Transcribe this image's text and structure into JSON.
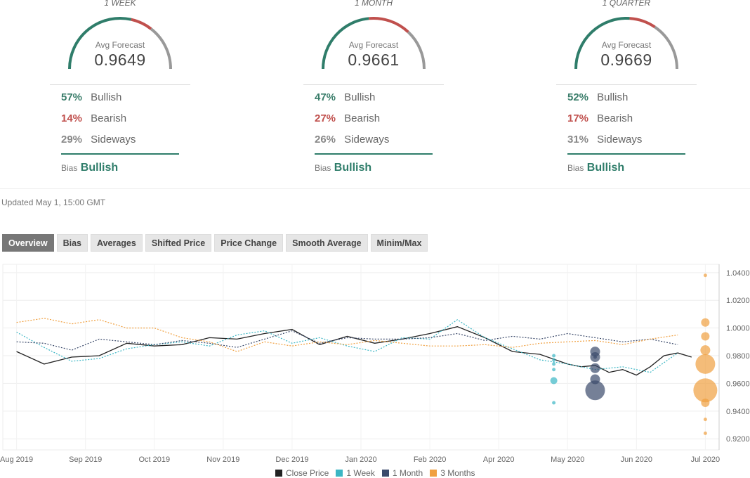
{
  "gauges": [
    {
      "period": "1 WEEK",
      "label": "Avg Forecast",
      "value": "0.9649",
      "bullish_pct": "57%",
      "bearish_pct": "14%",
      "sideways_pct": "29%",
      "bullish_label": "Bullish",
      "bearish_label": "Bearish",
      "sideways_label": "Sideways",
      "bias_label": "Bias",
      "bias_value": "Bullish",
      "bull": 0.57,
      "bear": 0.14,
      "side": 0.29
    },
    {
      "period": "1 MONTH",
      "label": "Avg Forecast",
      "value": "0.9661",
      "bullish_pct": "47%",
      "bearish_pct": "27%",
      "sideways_pct": "26%",
      "bullish_label": "Bullish",
      "bearish_label": "Bearish",
      "sideways_label": "Sideways",
      "bias_label": "Bias",
      "bias_value": "Bullish",
      "bull": 0.47,
      "bear": 0.27,
      "side": 0.26
    },
    {
      "period": "1 QUARTER",
      "label": "Avg Forecast",
      "value": "0.9669",
      "bullish_pct": "52%",
      "bearish_pct": "17%",
      "sideways_pct": "31%",
      "bullish_label": "Bullish",
      "bearish_label": "Bearish",
      "sideways_label": "Sideways",
      "bias_label": "Bias",
      "bias_value": "Bullish",
      "bull": 0.52,
      "bear": 0.17,
      "side": 0.31
    }
  ],
  "colors": {
    "bullish": "#2f7d6a",
    "bearish": "#c0504d",
    "sideways": "#999999",
    "close": "#222222",
    "week": "#3bb6c4",
    "month": "#3b4a6b",
    "quarter": "#f0a040"
  },
  "updated": "Updated May 1, 15:00 GMT",
  "tabs": [
    "Overview",
    "Bias",
    "Averages",
    "Shifted Price",
    "Price Change",
    "Smooth Average",
    "Minim/Max"
  ],
  "active_tab": "Overview",
  "legend": [
    "Close Price",
    "1 Week",
    "1 Month",
    "3 Months"
  ],
  "chart_data": {
    "type": "line",
    "x_ticks": [
      "Aug 2019",
      "Sep 2019",
      "Oct 2019",
      "Nov 2019",
      "Dec 2019",
      "Jan 2020",
      "Feb 2020",
      "Apr 2020",
      "May 2020",
      "Jun 2020",
      "Jul 2020"
    ],
    "y_ticks": [
      "1.0400",
      "1.0200",
      "1.0000",
      "0.9800",
      "0.9600",
      "0.9400",
      "0.9200"
    ],
    "ylim": [
      0.912,
      1.046
    ],
    "xlim": [
      0,
      52
    ],
    "grid": true,
    "series": [
      {
        "name": "Close Price",
        "style": "solid",
        "x": [
          1,
          3,
          5,
          7,
          9,
          11,
          13,
          15,
          17,
          19,
          21,
          23,
          25,
          27,
          29,
          31,
          33,
          35,
          37,
          39,
          41,
          42,
          43,
          44,
          45,
          46,
          47,
          48,
          49,
          50
        ],
        "y": [
          0.983,
          0.974,
          0.979,
          0.98,
          0.989,
          0.987,
          0.988,
          0.993,
          0.992,
          0.996,
          0.999,
          0.988,
          0.994,
          0.989,
          0.992,
          0.996,
          1.001,
          0.993,
          0.983,
          0.981,
          0.974,
          0.972,
          0.973,
          0.968,
          0.97,
          0.966,
          0.972,
          0.98,
          0.982,
          0.979
        ]
      },
      {
        "name": "1 Week",
        "style": "dotted",
        "x": [
          1,
          3,
          5,
          7,
          9,
          11,
          13,
          15,
          17,
          19,
          21,
          23,
          25,
          27,
          29,
          31,
          33,
          35,
          37,
          39,
          41,
          43,
          45,
          47,
          49
        ],
        "y": [
          0.997,
          0.986,
          0.976,
          0.978,
          0.985,
          0.988,
          0.99,
          0.987,
          0.995,
          0.998,
          0.989,
          0.993,
          0.987,
          0.983,
          0.993,
          0.992,
          1.006,
          0.993,
          0.985,
          0.977,
          0.974,
          0.97,
          0.972,
          0.968,
          0.982
        ]
      },
      {
        "name": "1 Month",
        "style": "dotted",
        "x": [
          1,
          3,
          5,
          7,
          9,
          11,
          13,
          15,
          17,
          19,
          21,
          23,
          25,
          27,
          29,
          31,
          33,
          35,
          37,
          39,
          41,
          43,
          45,
          47,
          49
        ],
        "y": [
          0.99,
          0.989,
          0.984,
          0.992,
          0.99,
          0.988,
          0.991,
          0.989,
          0.986,
          0.992,
          0.998,
          0.989,
          0.993,
          0.992,
          0.992,
          0.993,
          0.996,
          0.991,
          0.994,
          0.992,
          0.996,
          0.993,
          0.99,
          0.992,
          0.988
        ]
      },
      {
        "name": "3 Months",
        "style": "dotted",
        "x": [
          1,
          3,
          5,
          7,
          9,
          11,
          13,
          15,
          17,
          19,
          21,
          23,
          25,
          27,
          29,
          31,
          33,
          35,
          37,
          39,
          41,
          43,
          45,
          47,
          49
        ],
        "y": [
          1.004,
          1.007,
          1.003,
          1.006,
          1.0,
          1.0,
          0.993,
          0.99,
          0.983,
          0.99,
          0.987,
          0.99,
          0.988,
          0.991,
          0.989,
          0.987,
          0.987,
          0.988,
          0.986,
          0.989,
          0.99,
          0.991,
          0.988,
          0.992,
          0.995
        ]
      }
    ],
    "forecast_points": [
      {
        "series": "1 Week",
        "x": 40,
        "y": [
          0.962,
          0.97,
          0.974,
          0.977,
          0.98,
          0.946
        ],
        "sizes": [
          5,
          2.5,
          2.5,
          2.5,
          2.5,
          2.5
        ]
      },
      {
        "series": "1 Month",
        "x": 43,
        "y": [
          0.955,
          0.963,
          0.971,
          0.979,
          0.983,
          0.979
        ],
        "sizes": [
          14,
          7,
          7,
          7,
          7,
          2.5
        ]
      },
      {
        "series": "3 Months",
        "x": 51,
        "y": [
          0.955,
          0.974,
          0.984,
          0.994,
          1.004,
          0.946,
          0.934,
          0.924,
          1.038
        ],
        "sizes": [
          17,
          14,
          7,
          6,
          6,
          6,
          2.5,
          2.5,
          2.5
        ]
      }
    ]
  }
}
